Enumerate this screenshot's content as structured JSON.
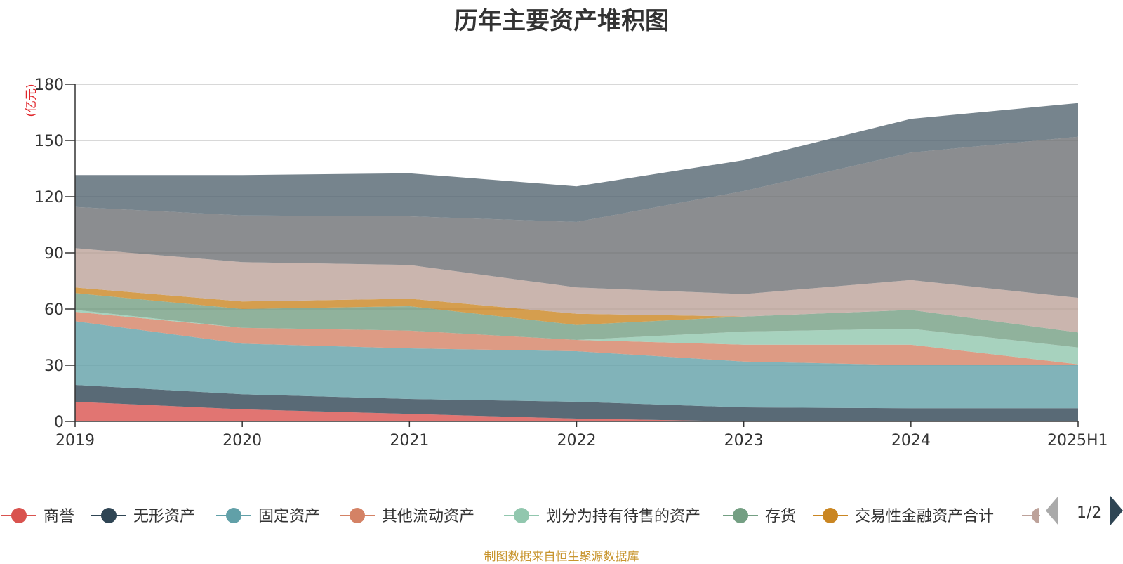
{
  "page": {
    "title": "历年主要资产堆积图",
    "unit_label": "(亿元)",
    "source_note": "制图数据来自恒生聚源数据库",
    "legend_page": "1/2"
  },
  "chart_data": {
    "type": "area",
    "stacked": true,
    "title": "历年主要资产堆积图",
    "ylabel": "(亿元)",
    "ylim": [
      0,
      180
    ],
    "yticks": [
      0,
      30,
      60,
      90,
      120,
      150,
      180
    ],
    "grid": true,
    "legend_position": "bottom",
    "categories": [
      "2019",
      "2020",
      "2021",
      "2022",
      "2023",
      "2024",
      "2025H1"
    ],
    "series": [
      {
        "name": "商誉",
        "color": "#d9534f",
        "values": [
          10.5,
          6.5,
          4,
          1.5,
          0,
          0,
          0
        ]
      },
      {
        "name": "无形资产",
        "color": "#2f4554",
        "values": [
          9,
          8,
          8,
          9,
          7.5,
          7,
          7
        ]
      },
      {
        "name": "固定资产",
        "color": "#61a0a8",
        "values": [
          34,
          27,
          27,
          27,
          24.5,
          23,
          23
        ]
      },
      {
        "name": "其他流动资产",
        "color": "#d48265",
        "values": [
          5,
          8.5,
          9.5,
          6,
          9,
          11,
          0.5
        ]
      },
      {
        "name": "划分为持有待售的资产",
        "color": "#91c7ae",
        "values": [
          1,
          0,
          0,
          0,
          7,
          8.5,
          9
        ]
      },
      {
        "name": "存货",
        "color": "#749f83",
        "values": [
          9,
          10,
          13,
          8,
          8,
          10,
          8
        ]
      },
      {
        "name": "交易性金融资产合计",
        "color": "#ca8622",
        "values": [
          3,
          4,
          4,
          6,
          0,
          0,
          0
        ]
      },
      {
        "values": [
          21,
          21,
          18,
          14,
          12,
          16,
          18.5
        ],
        "color": "#bda29a"
      },
      {
        "values": [
          22,
          25,
          26,
          35,
          55,
          68,
          86
        ],
        "color": "#6e7074"
      },
      {
        "values": [
          17,
          21.5,
          23,
          19,
          16.5,
          18,
          18
        ],
        "color": "#546570"
      }
    ]
  }
}
